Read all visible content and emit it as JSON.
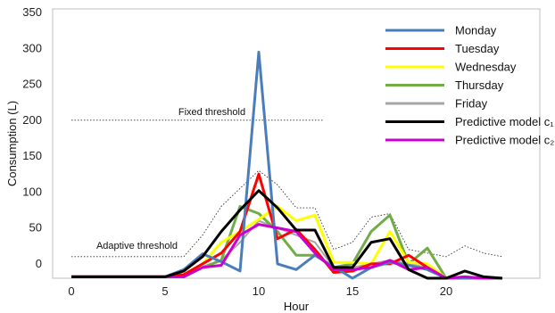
{
  "chart_data": {
    "type": "line",
    "xlabel": "Hour",
    "ylabel": "Consumption (L)",
    "xlim": [
      -1,
      25
    ],
    "ylim": [
      -20,
      355
    ],
    "xticks": [
      0,
      5,
      10,
      15,
      20
    ],
    "yticks": [
      0,
      50,
      100,
      150,
      200,
      250,
      300,
      350
    ],
    "grid": false,
    "legend_position": "top-right",
    "x": [
      0,
      1,
      2,
      3,
      4,
      5,
      6,
      7,
      8,
      9,
      10,
      11,
      12,
      13,
      14,
      15,
      16,
      17,
      18,
      19,
      20,
      21,
      22,
      23
    ],
    "series": [
      {
        "name": "Monday",
        "color": "#4a7ebb",
        "values": [
          -18,
          -18,
          -18,
          -18,
          -18,
          -18,
          -8,
          14,
          3,
          -10,
          295,
          0,
          -8,
          12,
          -4,
          -20,
          -5,
          2,
          -2,
          -8,
          -20,
          -20,
          -20,
          -20
        ]
      },
      {
        "name": "Tuesday",
        "color": "#ff0000",
        "values": [
          -18,
          -18,
          -18,
          -18,
          -18,
          -18,
          -15,
          0,
          15,
          45,
          125,
          35,
          48,
          20,
          -12,
          -10,
          0,
          0,
          12,
          -5,
          -20,
          -20,
          -20,
          -20
        ]
      },
      {
        "name": "Wednesday",
        "color": "#ffff00",
        "values": [
          -18,
          -18,
          -18,
          -18,
          -18,
          -18,
          -15,
          0,
          30,
          45,
          62,
          80,
          60,
          68,
          2,
          2,
          0,
          45,
          2,
          0,
          -20,
          -20,
          -20,
          -20
        ]
      },
      {
        "name": "Thursday",
        "color": "#70ad47",
        "values": [
          -18,
          -18,
          -18,
          -18,
          -18,
          -18,
          -18,
          -5,
          5,
          80,
          70,
          45,
          12,
          12,
          -5,
          0,
          45,
          68,
          0,
          22,
          -20,
          -20,
          -20,
          -20
        ]
      },
      {
        "name": "Friday",
        "color": "#a6a6a6",
        "values": [
          -18,
          -18,
          -18,
          -18,
          -18,
          -18,
          -18,
          -5,
          5,
          30,
          60,
          50,
          40,
          30,
          -5,
          -5,
          0,
          5,
          0,
          -5,
          -20,
          -20,
          -20,
          -20
        ]
      },
      {
        "name": "Predictive model c₁",
        "color": "#000000",
        "values": [
          -18,
          -18,
          -18,
          -18,
          -18,
          -18,
          -10,
          10,
          45,
          75,
          102,
          78,
          47,
          47,
          -5,
          -5,
          30,
          35,
          -8,
          -20,
          -20,
          -10,
          -18,
          -20
        ]
      },
      {
        "name": "Predictive model c₂",
        "color": "#cc00cc",
        "values": [
          -18,
          -18,
          -18,
          -18,
          -18,
          -18,
          -18,
          -5,
          -2,
          40,
          55,
          50,
          45,
          15,
          -8,
          -8,
          -5,
          5,
          -8,
          -5,
          -20,
          -18,
          -20,
          -20
        ]
      }
    ],
    "thresholds": [
      {
        "label": "Fixed threshold",
        "x": [
          0,
          13.5
        ],
        "values": [
          200,
          200
        ]
      },
      {
        "label": "Adaptive threshold",
        "x": [
          0,
          1,
          2,
          3,
          4,
          5,
          6,
          7,
          8,
          9,
          10,
          11,
          12,
          13,
          14,
          15,
          16,
          17,
          18,
          19,
          20,
          21,
          22,
          23
        ],
        "values": [
          10,
          10,
          10,
          10,
          10,
          10,
          10,
          40,
          80,
          105,
          130,
          110,
          78,
          78,
          20,
          30,
          65,
          70,
          20,
          15,
          10,
          25,
          15,
          10
        ]
      }
    ]
  }
}
